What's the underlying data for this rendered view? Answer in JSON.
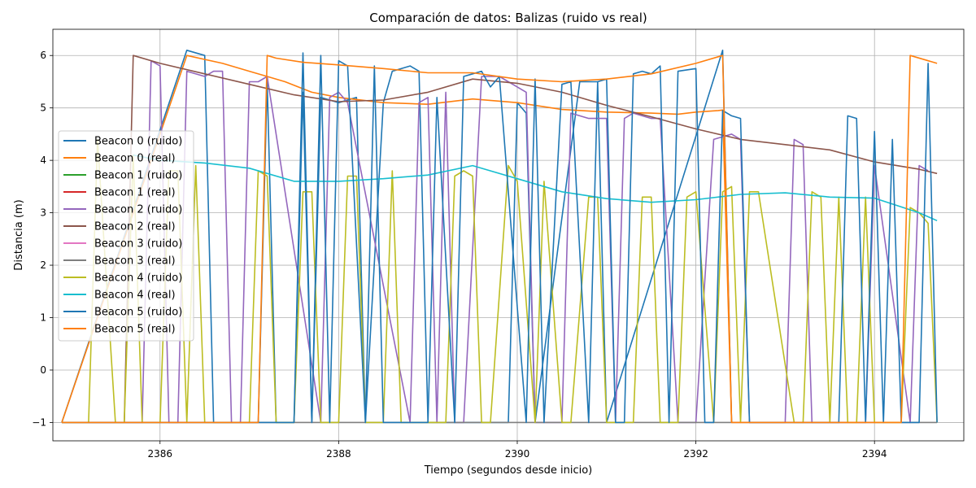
{
  "chart_data": {
    "type": "line",
    "title": "Comparación de datos: Balizas (ruido vs real)",
    "xlabel": "Tiempo (segundos desde inicio)",
    "ylabel": "Distancia (m)",
    "xlim": [
      2384.8,
      2395.0
    ],
    "ylim": [
      -1.35,
      6.5
    ],
    "xticks": [
      2386,
      2388,
      2390,
      2392,
      2394
    ],
    "yticks": [
      -1,
      0,
      1,
      2,
      3,
      4,
      5,
      6
    ],
    "grid": true,
    "legend_position": "center-left",
    "series": [
      {
        "name": "Beacon 0 (ruido)",
        "color": "#1f77b4",
        "x": [
          2384.9,
          2386.3,
          2386.5,
          2386.6,
          2387.1,
          2387.2,
          2387.3,
          2387.5,
          2387.6,
          2387.7,
          2387.8,
          2388.0,
          2388.2,
          2388.3,
          2388.5,
          2388.6,
          2388.8,
          2388.9,
          2389.0,
          2389.9,
          2390.0,
          2390.1,
          2390.2,
          2390.7,
          2390.9,
          2391.0,
          2392.3,
          2392.4
        ],
        "y": [
          -1,
          6.1,
          6.0,
          -1,
          -1,
          5.5,
          -1,
          -1,
          5.3,
          -1,
          5.2,
          5.1,
          5.2,
          -1,
          5.1,
          5.7,
          5.8,
          5.7,
          -1,
          -1,
          5.1,
          4.9,
          -1,
          5.5,
          5.5,
          -1,
          6.1,
          -1
        ]
      },
      {
        "name": "Beacon 0 (real)",
        "color": "#ff7f0e",
        "x": [
          2384.9,
          2386.3,
          2386.7,
          2387.0,
          2387.2,
          2387.4,
          2387.7,
          2388.0,
          2388.5,
          2389.0,
          2389.5,
          2390.0,
          2390.5,
          2391.0,
          2391.5,
          2391.8,
          2392.0,
          2392.25,
          2392.3,
          2392.4
        ],
        "y": [
          -1,
          6.0,
          5.85,
          5.7,
          5.6,
          5.5,
          5.3,
          5.2,
          5.1,
          5.07,
          5.17,
          5.1,
          4.97,
          4.92,
          4.9,
          4.88,
          4.92,
          4.95,
          4.96,
          -1
        ]
      },
      {
        "name": "Beacon 1 (ruido)",
        "color": "#2ca02c",
        "x": [],
        "y": []
      },
      {
        "name": "Beacon 1 (real)",
        "color": "#d62728",
        "x": [],
        "y": []
      },
      {
        "name": "Beacon 2 (ruido)",
        "color": "#9467bd",
        "x": [
          2384.9,
          2385.8,
          2385.9,
          2386.0,
          2386.1,
          2386.2,
          2386.3,
          2386.5,
          2386.6,
          2386.7,
          2386.8,
          2386.9,
          2387.0,
          2387.1,
          2387.2,
          2387.8,
          2387.9,
          2388.0,
          2388.1,
          2388.8,
          2388.9,
          2389.0,
          2389.1,
          2389.2,
          2389.3,
          2389.4,
          2389.6,
          2389.8,
          2390.0,
          2390.1,
          2390.2,
          2390.5,
          2390.6,
          2390.8,
          2391.0,
          2391.1,
          2391.2,
          2391.3,
          2391.5,
          2391.6,
          2391.8,
          2392.0,
          2392.2,
          2392.4,
          2392.5,
          2392.6,
          2393.0,
          2393.1,
          2393.2,
          2393.3,
          2393.5,
          2393.6,
          2393.9,
          2394.0,
          2394.4,
          2394.5,
          2394.6
        ],
        "y": [
          -1,
          -1,
          5.9,
          5.8,
          -1,
          -1,
          5.7,
          5.6,
          5.7,
          5.7,
          -1,
          -1,
          5.5,
          5.5,
          5.6,
          -1,
          5.2,
          5.3,
          5.1,
          -1,
          5.1,
          5.2,
          -1,
          5.3,
          -1,
          -1,
          5.6,
          5.6,
          5.4,
          5.3,
          -1,
          -1,
          4.9,
          4.8,
          4.8,
          -1,
          4.8,
          4.9,
          4.8,
          4.8,
          -1,
          -1,
          4.4,
          4.5,
          4.4,
          -1,
          -1,
          4.4,
          4.3,
          -1,
          -1,
          -1,
          -1,
          3.9,
          -1,
          3.9,
          3.8
        ]
      },
      {
        "name": "Beacon 2 (real)",
        "color": "#8c564b",
        "x": [
          2384.9,
          2385.6,
          2385.7,
          2386.0,
          2386.5,
          2387.0,
          2387.5,
          2388.0,
          2388.5,
          2389.0,
          2389.5,
          2390.0,
          2390.5,
          2391.0,
          2391.5,
          2392.0,
          2392.5,
          2393.0,
          2393.5,
          2394.0,
          2394.5,
          2394.7
        ],
        "y": [
          -1,
          -1,
          6.0,
          5.85,
          5.65,
          5.45,
          5.25,
          5.12,
          5.15,
          5.3,
          5.55,
          5.47,
          5.3,
          5.05,
          4.83,
          4.6,
          4.4,
          4.3,
          4.2,
          3.97,
          3.83,
          3.75
        ]
      },
      {
        "name": "Beacon 3 (ruido)",
        "color": "#e377c2",
        "x": [],
        "y": []
      },
      {
        "name": "Beacon 3 (real)",
        "color": "#7f7f7f",
        "x": [
          2384.9,
          2394.7
        ],
        "y": [
          -1,
          -1
        ]
      },
      {
        "name": "Beacon 4 (ruido)",
        "color": "#bcbd22",
        "x": [
          2384.9,
          2385.1,
          2385.2,
          2385.3,
          2385.5,
          2385.6,
          2385.7,
          2385.8,
          2385.9,
          2386.0,
          2386.1,
          2386.2,
          2386.3,
          2386.4,
          2386.5,
          2387.0,
          2387.1,
          2387.2,
          2387.3,
          2387.5,
          2387.6,
          2387.7,
          2387.8,
          2388.0,
          2388.1,
          2388.2,
          2388.3,
          2388.5,
          2388.6,
          2388.7,
          2389.2,
          2389.3,
          2389.4,
          2389.5,
          2389.6,
          2389.7,
          2389.9,
          2390.0,
          2390.2,
          2390.3,
          2390.5,
          2390.6,
          2390.8,
          2390.9,
          2391.0,
          2391.3,
          2391.4,
          2391.5,
          2391.6,
          2391.8,
          2391.9,
          2392.0,
          2392.2,
          2392.3,
          2392.4,
          2392.5,
          2392.6,
          2392.7,
          2393.1,
          2393.2,
          2393.3,
          2393.4,
          2393.5,
          2393.6,
          2393.7,
          2393.8,
          2393.9,
          2394.0,
          2394.3,
          2394.4,
          2394.5,
          2394.6,
          2394.7
        ],
        "y": [
          -1,
          -1,
          -1,
          4.4,
          -1,
          -1,
          4.1,
          -1,
          -1,
          -1,
          3.8,
          3.8,
          -1,
          3.9,
          -1,
          -1,
          3.8,
          3.7,
          -1,
          -1,
          3.4,
          3.4,
          -1,
          -1,
          3.7,
          3.7,
          -1,
          -1,
          3.8,
          -1,
          -1,
          3.7,
          3.8,
          3.7,
          -1,
          -1,
          3.9,
          3.6,
          -1,
          3.6,
          -1,
          -1,
          3.3,
          3.3,
          -1,
          -1,
          3.3,
          3.3,
          -1,
          -1,
          3.3,
          3.4,
          -1,
          3.4,
          3.5,
          -1,
          3.4,
          3.4,
          -1,
          -1,
          3.4,
          3.3,
          -1,
          3.3,
          -1,
          -1,
          3.3,
          -1,
          -1,
          3.1,
          3.0,
          2.8,
          -1
        ]
      },
      {
        "name": "Beacon 4 (real)",
        "color": "#17becf",
        "x": [
          2385.7,
          2386.0,
          2386.5,
          2387.0,
          2387.5,
          2388.0,
          2388.5,
          2389.0,
          2389.5,
          2390.0,
          2390.5,
          2391.0,
          2391.5,
          2392.0,
          2392.5,
          2393.0,
          2393.5,
          2394.0,
          2394.5,
          2394.7
        ],
        "y": [
          4.1,
          4.0,
          3.95,
          3.85,
          3.6,
          3.6,
          3.65,
          3.72,
          3.9,
          3.65,
          3.4,
          3.27,
          3.2,
          3.25,
          3.35,
          3.38,
          3.3,
          3.28,
          3.0,
          2.85
        ]
      },
      {
        "name": "Beacon 5 (ruido)",
        "color": "#1f77b4",
        "x": [
          2384.9,
          2387.5,
          2387.6,
          2387.7,
          2387.8,
          2387.9,
          2388.0,
          2388.1,
          2388.3,
          2388.4,
          2388.5,
          2389.0,
          2389.1,
          2389.3,
          2389.4,
          2389.5,
          2389.6,
          2389.7,
          2389.8,
          2390.1,
          2390.2,
          2390.3,
          2390.5,
          2390.6,
          2390.8,
          2390.9,
          2391.0,
          2391.1,
          2391.2,
          2391.3,
          2391.4,
          2391.5,
          2391.6,
          2391.7,
          2391.8,
          2392.0,
          2392.1,
          2392.2,
          2392.3,
          2392.4,
          2392.5,
          2392.6,
          2393.0,
          2393.6,
          2393.7,
          2393.8,
          2393.9,
          2394.0,
          2394.1,
          2394.2,
          2394.3,
          2394.4,
          2394.5,
          2394.6,
          2394.7
        ],
        "y": [
          -1,
          -1,
          6.05,
          -1,
          6.0,
          -1,
          5.9,
          5.8,
          -1,
          5.8,
          -1,
          -1,
          5.2,
          -1,
          5.6,
          5.65,
          5.7,
          5.4,
          5.6,
          -1,
          5.55,
          -1,
          5.45,
          5.5,
          -1,
          5.5,
          5.55,
          -1,
          -1,
          5.65,
          5.7,
          5.65,
          5.8,
          -1,
          5.7,
          5.75,
          -1,
          -1,
          4.95,
          4.85,
          4.8,
          -1,
          -1,
          -1,
          4.85,
          4.8,
          -1,
          4.55,
          -1,
          4.4,
          -1,
          -1,
          -1,
          5.85,
          -1
        ]
      },
      {
        "name": "Beacon 5 (real)",
        "color": "#ff7f0e",
        "x": [
          2384.9,
          2387.1,
          2387.2,
          2387.3,
          2387.6,
          2388.0,
          2388.5,
          2389.0,
          2389.5,
          2390.0,
          2390.5,
          2391.0,
          2391.5,
          2392.0,
          2392.3,
          2392.4,
          2394.3,
          2394.4,
          2394.7
        ],
        "y": [
          -1,
          -1,
          6.0,
          5.95,
          5.87,
          5.82,
          5.75,
          5.67,
          5.67,
          5.55,
          5.5,
          5.55,
          5.65,
          5.85,
          6.0,
          -1,
          -1,
          6.0,
          5.85
        ]
      }
    ]
  }
}
